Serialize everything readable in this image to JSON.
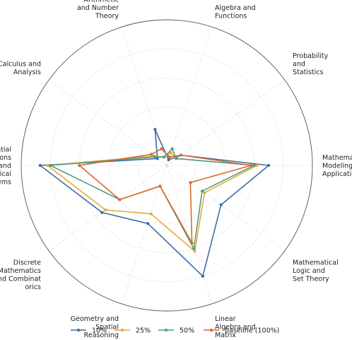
{
  "chart_data": {
    "type": "radar",
    "categories": [
      "Calculus and\nAnalysis",
      "Arithmetic\nand Number\nTheory",
      "Algebra and\nFunctions",
      "Probability\nand\nStatistics",
      "Mathematical\nModeling and\nApplications",
      "Mathematical\nLogic and\nSet Theory",
      "Linear\nAlgebra and\nMatrix\nTheory",
      "Geometry and\nSpatial\nReasoning",
      "Discrete\nMathematics\nand Combinat\norics",
      "Differential\nEquations\nand\nDynamical\nSystems"
    ],
    "rlim": [
      0,
      1
    ],
    "grid": true,
    "legend_position": "bottom",
    "series": [
      {
        "name": "10%",
        "color": "#3a6ea5",
        "values": [
          0.08,
          0.26,
          0.04,
          0.12,
          0.7,
          0.46,
          0.8,
          0.42,
          0.55,
          0.87
        ]
      },
      {
        "name": "25%",
        "color": "#e5a93a",
        "values": [
          0.11,
          0.06,
          0.09,
          0.08,
          0.62,
          0.32,
          0.62,
          0.35,
          0.52,
          0.82
        ]
      },
      {
        "name": "50%",
        "color": "#4f9e85",
        "values": [
          0.1,
          0.06,
          0.12,
          0.08,
          0.6,
          0.3,
          0.6,
          0.15,
          0.4,
          0.8
        ]
      },
      {
        "name": "baseline (100%)",
        "color": "#d9692e",
        "values": [
          0.13,
          0.12,
          0.06,
          0.12,
          0.58,
          0.2,
          0.56,
          0.15,
          0.4,
          0.6
        ]
      }
    ]
  }
}
